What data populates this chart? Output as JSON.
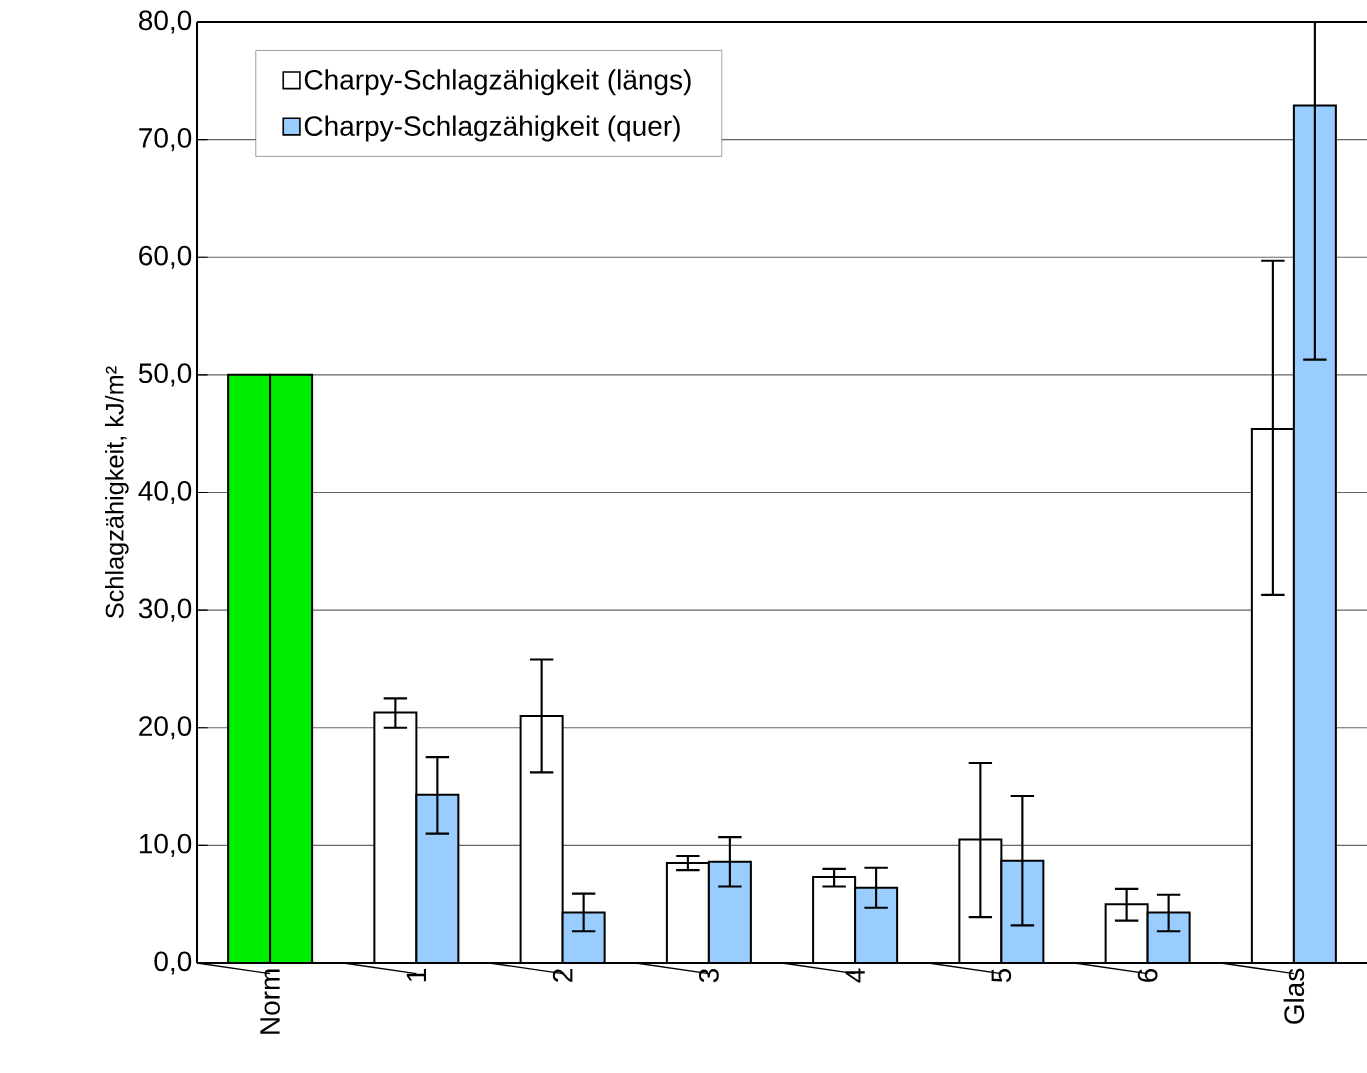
{
  "chart_data": {
    "type": "bar",
    "ylabel": "Schlagzähigkeit, kJ/m²",
    "categories": [
      "Norm",
      "1",
      "2",
      "3",
      "4",
      "5",
      "6",
      "Glas"
    ],
    "series": [
      {
        "name": "Charpy-Schlagzähigkeit (längs)",
        "color": "#ffffff",
        "colors": [
          "#00ee00",
          "#ffffff",
          "#ffffff",
          "#ffffff",
          "#ffffff",
          "#ffffff",
          "#ffffff",
          "#ffffff"
        ],
        "values": [
          50.0,
          21.3,
          21.0,
          8.5,
          7.3,
          10.5,
          5.0,
          45.4
        ],
        "errors": [
          null,
          [
            20.0,
            22.5
          ],
          [
            16.2,
            25.8
          ],
          [
            7.9,
            9.1
          ],
          [
            6.5,
            8.0
          ],
          [
            3.9,
            17.0
          ],
          [
            3.6,
            6.3
          ],
          [
            31.3,
            59.7
          ]
        ]
      },
      {
        "name": "Charpy-Schlagzähigkeit (quer)",
        "color": "#99ccff",
        "colors": [
          "#00ee00",
          "#99ccff",
          "#99ccff",
          "#99ccff",
          "#99ccff",
          "#99ccff",
          "#99ccff",
          "#99ccff"
        ],
        "values": [
          50.0,
          14.3,
          4.3,
          8.6,
          6.4,
          8.7,
          4.3,
          72.9
        ],
        "errors": [
          null,
          [
            11.0,
            17.5
          ],
          [
            2.7,
            5.9
          ],
          [
            6.5,
            10.7
          ],
          [
            4.7,
            8.1
          ],
          [
            3.2,
            14.2
          ],
          [
            2.7,
            5.8
          ],
          [
            51.3,
            80.0
          ]
        ]
      }
    ],
    "ylim": [
      0,
      80
    ],
    "yticks": [
      {
        "value": 0,
        "label": "0,0"
      },
      {
        "value": 10,
        "label": "10,0"
      },
      {
        "value": 20,
        "label": "20,0"
      },
      {
        "value": 30,
        "label": "30,0"
      },
      {
        "value": 40,
        "label": "40,0"
      },
      {
        "value": 50,
        "label": "50,0"
      },
      {
        "value": 60,
        "label": "60,0"
      },
      {
        "value": 70,
        "label": "70,0"
      },
      {
        "value": 80,
        "label": "80,0"
      }
    ],
    "grid": "y",
    "legend": "top left"
  }
}
